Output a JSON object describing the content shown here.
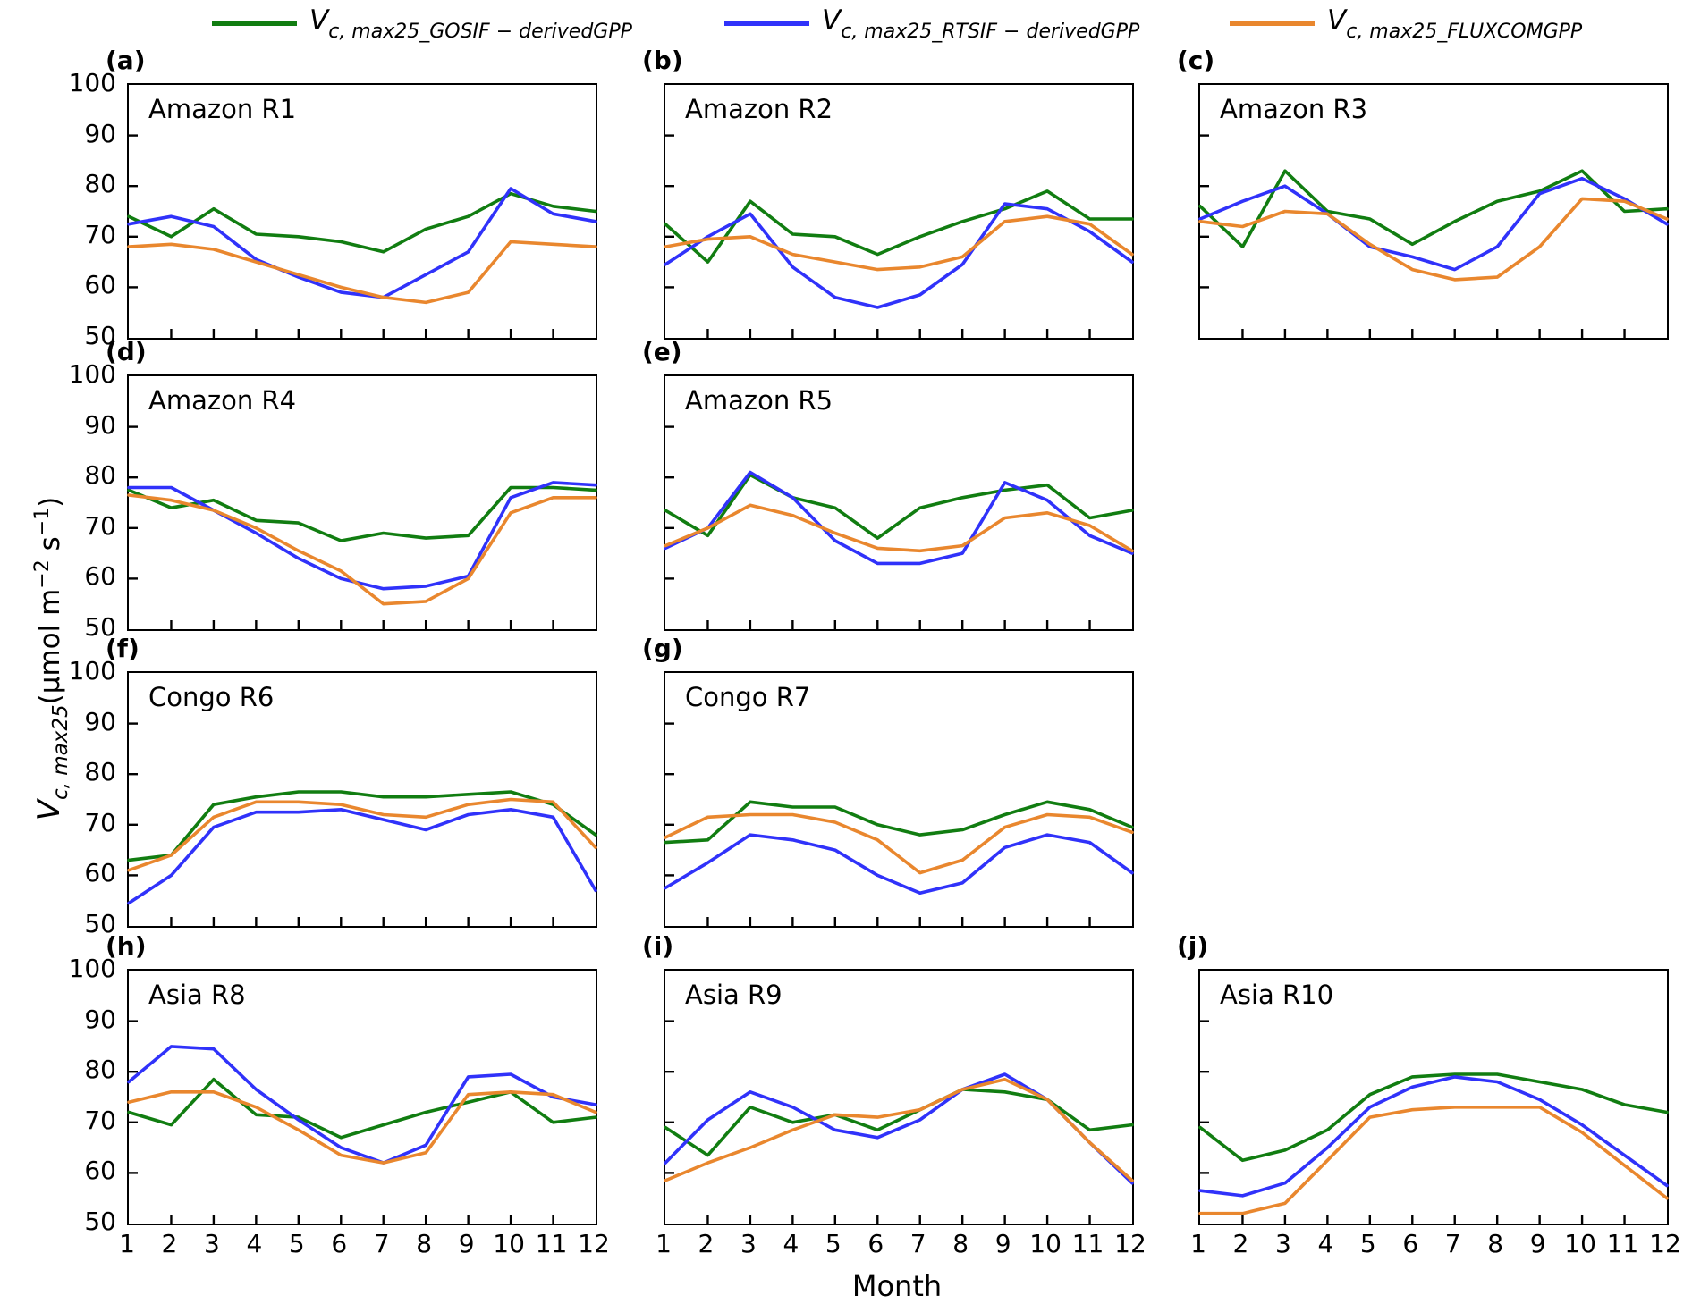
{
  "figure": {
    "x_axis_label": "Month",
    "y_axis_label_parts": {
      "v": "V",
      "sub": "c, max25",
      "open": "(",
      "unit1": "μmol m",
      "sup1": "−2",
      "unit2": " s",
      "sup2": "−1",
      "close": ")"
    }
  },
  "legend": {
    "entries": [
      {
        "v": "V",
        "sub": "c, max25_GOSIF − derivedGPP",
        "color": "#117d11",
        "series_key": "gosif"
      },
      {
        "v": "V",
        "sub": "c, max25_RTSIF − derivedGPP",
        "color": "#3032fa",
        "series_key": "rtsif"
      },
      {
        "v": "V",
        "sub": "c, max25_FLUXCOMGPP",
        "color": "#e9872e",
        "series_key": "fluxcom"
      }
    ]
  },
  "chart_data": {
    "type": "line",
    "x": [
      1,
      2,
      3,
      4,
      5,
      6,
      7,
      8,
      9,
      10,
      11,
      12
    ],
    "xlabel": "Month",
    "ylabel": "Vc,max25 (umol m-2 s-1)",
    "ylim": [
      50,
      100
    ],
    "yticks": [
      100,
      90,
      80,
      70,
      60,
      50
    ],
    "grid": false,
    "series_meta": [
      {
        "key": "gosif",
        "name": "Vc,max25_GOSIF-derivedGPP",
        "color": "#117d11"
      },
      {
        "key": "rtsif",
        "name": "Vc,max25_RTSIF-derivedGPP",
        "color": "#3032fa"
      },
      {
        "key": "fluxcom",
        "name": "Vc,max25_FLUXCOMGPP",
        "color": "#e9872e"
      }
    ],
    "panels": [
      {
        "label": "(a)",
        "region": "Amazon R1",
        "row": 0,
        "col": 0,
        "series": {
          "gosif": [
            74,
            70,
            75.5,
            70.5,
            70,
            69,
            67,
            71.5,
            74,
            78.5,
            76,
            75
          ],
          "rtsif": [
            72.5,
            74,
            72,
            65.5,
            62,
            59,
            58,
            62.5,
            67,
            79.5,
            74.5,
            73
          ],
          "fluxcom": [
            68,
            68.5,
            67.5,
            65,
            62.5,
            60,
            58,
            57,
            59,
            69,
            68.5,
            68
          ]
        }
      },
      {
        "label": "(b)",
        "region": "Amazon R2",
        "row": 0,
        "col": 1,
        "series": {
          "gosif": [
            72.5,
            65,
            77,
            70.5,
            70,
            66.5,
            70,
            73,
            75.5,
            79,
            73.5,
            73.5
          ],
          "rtsif": [
            64.5,
            70,
            74.5,
            64,
            58,
            56,
            58.5,
            64.5,
            76.5,
            75.5,
            71,
            65
          ],
          "fluxcom": [
            68,
            69.5,
            70,
            66.5,
            65,
            63.5,
            64,
            66,
            73,
            74,
            72.5,
            66.5
          ]
        }
      },
      {
        "label": "(c)",
        "region": "Amazon R3",
        "row": 0,
        "col": 2,
        "series": {
          "gosif": [
            76,
            68,
            83,
            75,
            73.5,
            68.5,
            73,
            77,
            79,
            83,
            75,
            75.5
          ],
          "rtsif": [
            73.5,
            77,
            80,
            74.5,
            68,
            66,
            63.5,
            68,
            78.5,
            81.5,
            77.5,
            72.5
          ],
          "fluxcom": [
            73,
            72,
            75,
            74.5,
            68.5,
            63.5,
            61.5,
            62,
            68,
            77.5,
            77,
            73.5
          ]
        }
      },
      {
        "label": "(d)",
        "region": "Amazon R4",
        "row": 1,
        "col": 0,
        "series": {
          "gosif": [
            77.5,
            74,
            75.5,
            71.5,
            71,
            67.5,
            69,
            68,
            68.5,
            78,
            78,
            77.5
          ],
          "rtsif": [
            78,
            78,
            73.5,
            69,
            64,
            60,
            58,
            58.5,
            60.5,
            76,
            79,
            78.5
          ],
          "fluxcom": [
            76.5,
            75.5,
            73.5,
            70,
            65.5,
            61.5,
            55,
            55.5,
            60,
            73,
            76,
            76
          ]
        }
      },
      {
        "label": "(e)",
        "region": "Amazon R5",
        "row": 1,
        "col": 1,
        "series": {
          "gosif": [
            73.5,
            68.5,
            80.5,
            76,
            74,
            68,
            74,
            76,
            77.5,
            78.5,
            72,
            73.5
          ],
          "rtsif": [
            66,
            70,
            81,
            76,
            67.5,
            63,
            63,
            65,
            79,
            75.5,
            68.5,
            65
          ],
          "fluxcom": [
            66.5,
            70,
            74.5,
            72.5,
            69,
            66,
            65.5,
            66.5,
            72,
            73,
            70.5,
            65.5
          ]
        }
      },
      {
        "label": "(f)",
        "region": "Congo R6",
        "row": 2,
        "col": 0,
        "series": {
          "gosif": [
            63,
            64,
            74,
            75.5,
            76.5,
            76.5,
            75.5,
            75.5,
            76,
            76.5,
            74,
            68
          ],
          "rtsif": [
            54.5,
            60,
            69.5,
            72.5,
            72.5,
            73,
            71,
            69,
            72,
            73,
            71.5,
            57
          ],
          "fluxcom": [
            61,
            64,
            71.5,
            74.5,
            74.5,
            74,
            72,
            71.5,
            74,
            75,
            74.5,
            65.5
          ]
        }
      },
      {
        "label": "(g)",
        "region": "Congo R7",
        "row": 2,
        "col": 1,
        "series": {
          "gosif": [
            66.5,
            67,
            74.5,
            73.5,
            73.5,
            70,
            68,
            69,
            72,
            74.5,
            73,
            69.5
          ],
          "rtsif": [
            57.5,
            62.5,
            68,
            67,
            65,
            60,
            56.5,
            58.5,
            65.5,
            68,
            66.5,
            60.5
          ],
          "fluxcom": [
            67.5,
            71.5,
            72,
            72,
            70.5,
            67,
            60.5,
            63,
            69.5,
            72,
            71.5,
            68.5
          ]
        }
      },
      {
        "label": "(h)",
        "region": "Asia R8",
        "row": 3,
        "col": 0,
        "series": {
          "gosif": [
            72,
            69.5,
            78.5,
            71.5,
            71,
            67,
            69.5,
            72,
            74,
            76,
            70,
            71
          ],
          "rtsif": [
            78,
            85,
            84.5,
            76.5,
            70.5,
            65,
            62,
            65.5,
            79,
            79.5,
            75,
            73.5
          ],
          "fluxcom": [
            74,
            76,
            76,
            73,
            68.5,
            63.5,
            62,
            64,
            75.5,
            76,
            75.5,
            72
          ]
        }
      },
      {
        "label": "(i)",
        "region": "Asia R9",
        "row": 3,
        "col": 1,
        "series": {
          "gosif": [
            69,
            63.5,
            73,
            70,
            71.5,
            68.5,
            72.5,
            76.5,
            76,
            74.5,
            68.5,
            69.5
          ],
          "rtsif": [
            62,
            70.5,
            76,
            73,
            68.5,
            67,
            70.5,
            76.5,
            79.5,
            74.5,
            66,
            58
          ],
          "fluxcom": [
            58.5,
            62,
            65,
            68.5,
            71.5,
            71,
            72.5,
            76.5,
            78.5,
            74.5,
            66,
            58.5
          ]
        }
      },
      {
        "label": "(j)",
        "region": "Asia R10",
        "row": 3,
        "col": 2,
        "series": {
          "gosif": [
            69,
            62.5,
            64.5,
            68.5,
            75.5,
            79,
            79.5,
            79.5,
            78,
            76.5,
            73.5,
            72
          ],
          "rtsif": [
            56.5,
            55.5,
            58,
            65,
            73,
            77,
            79,
            78,
            74.5,
            69.5,
            63.5,
            57.5
          ],
          "fluxcom": [
            52,
            52,
            54,
            62.5,
            71,
            72.5,
            73,
            73,
            73,
            68,
            61.5,
            55
          ]
        }
      }
    ]
  }
}
